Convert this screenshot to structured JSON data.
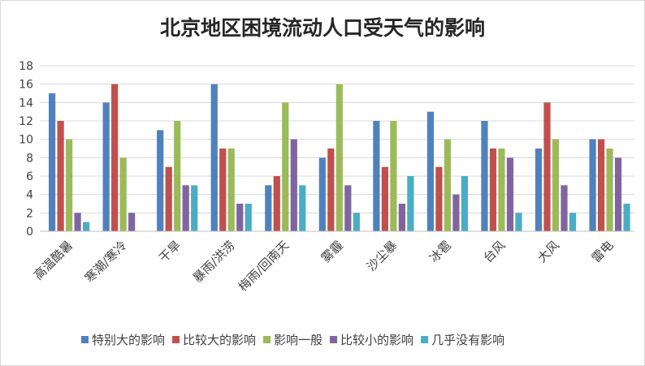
{
  "chart_data": {
    "type": "bar",
    "title": "北京地区困境流动人口受天气的影响",
    "xlabel": "",
    "ylabel": "",
    "ylim": [
      0,
      18
    ],
    "yticks": [
      0,
      2,
      4,
      6,
      8,
      10,
      12,
      14,
      16,
      18
    ],
    "grid": true,
    "legend_position": "bottom",
    "categories": [
      "高温酷暑",
      "寒潮/寒冷",
      "干旱",
      "暴雨/洪涝",
      "梅雨/回南天",
      "雾霾",
      "沙尘暴",
      "冰雹",
      "台风",
      "大风",
      "雷电"
    ],
    "series": [
      {
        "name": "特别大的影响",
        "color": "#4f81bd",
        "values": [
          15,
          14,
          11,
          16,
          5,
          8,
          12,
          13,
          12,
          9,
          10
        ]
      },
      {
        "name": "比较大的影响",
        "color": "#c0504d",
        "values": [
          12,
          16,
          7,
          9,
          6,
          9,
          7,
          7,
          9,
          14,
          10
        ]
      },
      {
        "name": "影响一般",
        "color": "#9bbb59",
        "values": [
          10,
          8,
          12,
          9,
          14,
          16,
          12,
          10,
          9,
          10,
          9
        ]
      },
      {
        "name": "比较小的影响",
        "color": "#8064a2",
        "values": [
          2,
          2,
          5,
          3,
          10,
          5,
          3,
          4,
          8,
          5,
          8
        ]
      },
      {
        "name": "几乎没有影响",
        "color": "#4bacc6",
        "values": [
          1,
          0,
          5,
          3,
          5,
          2,
          6,
          6,
          2,
          2,
          3
        ]
      }
    ]
  }
}
